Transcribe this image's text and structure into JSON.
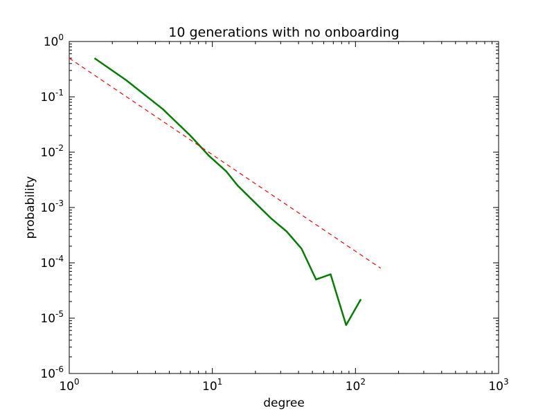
{
  "chart_data": {
    "type": "line",
    "title": "10 generations with no onboarding",
    "xlabel": "degree",
    "ylabel": "probability",
    "xscale": "log",
    "yscale": "log",
    "xlim": [
      1,
      1000
    ],
    "ylim": [
      1e-06,
      1
    ],
    "grid": false,
    "x_ticks": [
      {
        "base": "10",
        "exp": "0",
        "value": 1
      },
      {
        "base": "10",
        "exp": "1",
        "value": 10
      },
      {
        "base": "10",
        "exp": "2",
        "value": 100
      },
      {
        "base": "10",
        "exp": "3",
        "value": 1000
      }
    ],
    "y_ticks": [
      {
        "base": "10",
        "exp": "0",
        "value": 1
      },
      {
        "base": "10",
        "exp": "-1",
        "value": 0.1
      },
      {
        "base": "10",
        "exp": "-2",
        "value": 0.01
      },
      {
        "base": "10",
        "exp": "-3",
        "value": 0.001
      },
      {
        "base": "10",
        "exp": "-4",
        "value": 0.0001
      },
      {
        "base": "10",
        "exp": "-5",
        "value": 1e-05
      },
      {
        "base": "10",
        "exp": "-6",
        "value": 1e-06
      }
    ],
    "series": [
      {
        "color": "#007f00",
        "style": "solid",
        "x": [
          1.5,
          2.5,
          4.5,
          7.0,
          9.5,
          12.5,
          15.0,
          20.0,
          26.0,
          33.0,
          42.0,
          53.0,
          67.0,
          86.0,
          109.0
        ],
        "y": [
          0.5,
          0.2,
          0.06,
          0.02,
          0.0085,
          0.0045,
          0.0025,
          0.0012,
          0.00062,
          0.00037,
          0.00018,
          5e-05,
          6.2e-05,
          7.5e-06,
          2.2e-05
        ]
      },
      {
        "color": "#ff0000",
        "style": "dashed",
        "x": [
          1,
          150
        ],
        "y": [
          0.5,
          8e-05
        ]
      }
    ]
  }
}
